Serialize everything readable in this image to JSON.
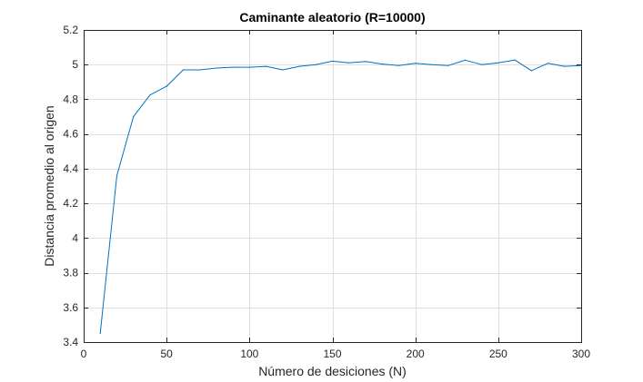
{
  "chart_data": {
    "type": "line",
    "title": "Caminante aleatorio (R=10000)",
    "xlabel": "Número de desiciones (N)",
    "ylabel": "Distancia promedio al origen",
    "xlim": [
      0,
      300
    ],
    "ylim": [
      3.4,
      5.2
    ],
    "xticks": [
      0,
      50,
      100,
      150,
      200,
      250,
      300
    ],
    "xtick_labels": [
      "0",
      "50",
      "100",
      "150",
      "200",
      "250",
      "300"
    ],
    "yticks": [
      3.4,
      3.6,
      3.8,
      4.0,
      4.2,
      4.4,
      4.6,
      4.8,
      5.0,
      5.2
    ],
    "ytick_labels": [
      "3.4",
      "3.6",
      "3.8",
      "4",
      "4.2",
      "4.4",
      "4.6",
      "4.8",
      "5",
      "5.2"
    ],
    "grid": true,
    "series": [
      {
        "color": "#0072bd",
        "x": [
          10,
          20,
          30,
          40,
          50,
          60,
          70,
          80,
          90,
          100,
          110,
          120,
          130,
          140,
          150,
          160,
          170,
          180,
          190,
          200,
          210,
          220,
          230,
          240,
          250,
          260,
          270,
          280,
          290,
          300
        ],
        "y": [
          3.45,
          4.36,
          4.7,
          4.825,
          4.875,
          4.97,
          4.97,
          4.98,
          4.985,
          4.985,
          4.99,
          4.97,
          4.99,
          5.0,
          5.02,
          5.01,
          5.018,
          5.003,
          4.995,
          5.008,
          5.0,
          4.995,
          5.026,
          5.0,
          5.01,
          5.027,
          4.965,
          5.008,
          4.99,
          4.995
        ]
      }
    ]
  }
}
